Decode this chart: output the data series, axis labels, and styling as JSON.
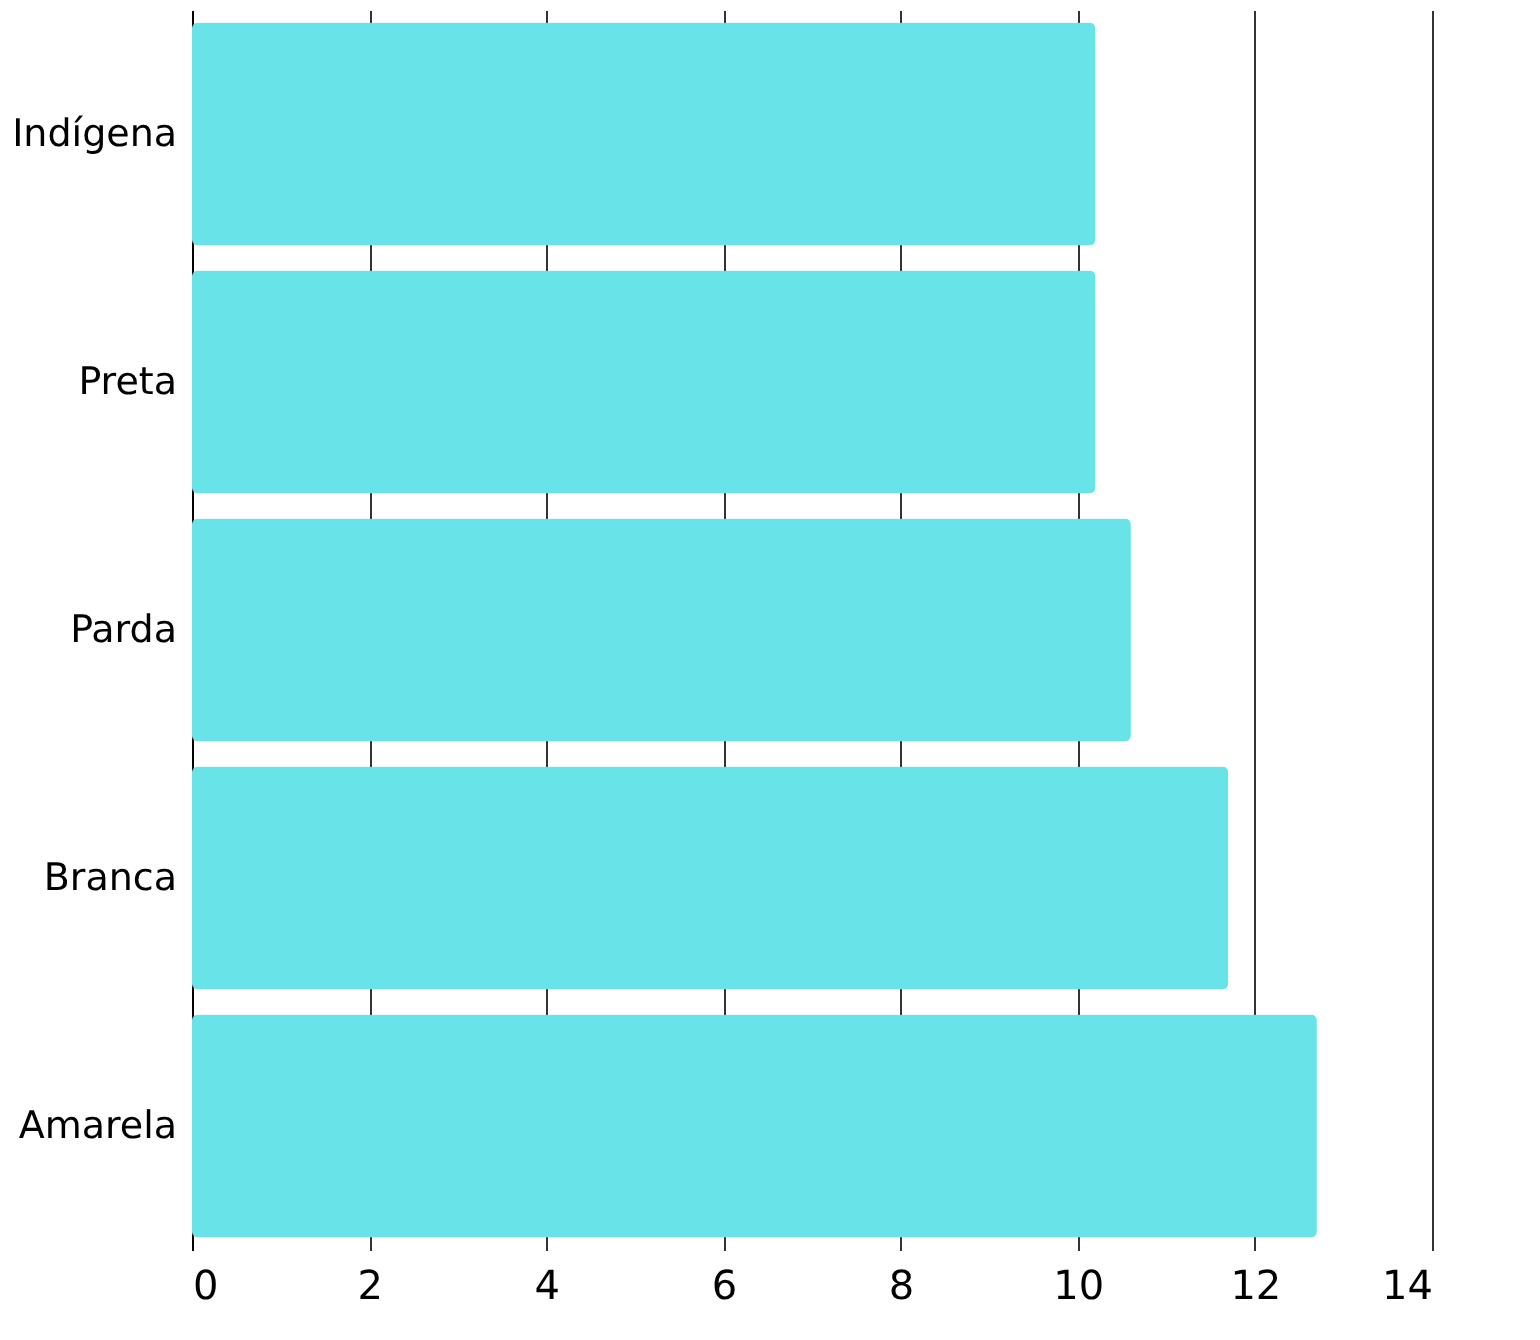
{
  "chart_data": {
    "type": "bar",
    "orientation": "horizontal",
    "categories": [
      "Indígena",
      "Preta",
      "Parda",
      "Branca",
      "Amarela"
    ],
    "values": [
      10.2,
      10.2,
      10.6,
      11.7,
      12.7
    ],
    "color": "#68e4e8",
    "xlim": [
      0,
      14
    ],
    "xticks": [
      0,
      2,
      4,
      6,
      8,
      10,
      12,
      14
    ],
    "grid": "x"
  }
}
